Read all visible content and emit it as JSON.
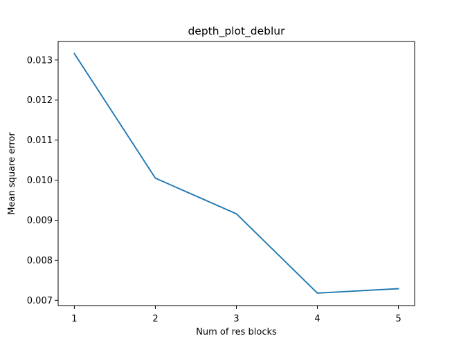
{
  "chart_data": {
    "type": "line",
    "title": "depth_plot_deblur",
    "xlabel": "Num of res blocks",
    "ylabel": "Mean square error",
    "x": [
      1,
      2,
      3,
      4,
      5
    ],
    "series": [
      {
        "values": [
          0.01316,
          0.01005,
          0.00916,
          0.00718,
          0.00729
        ]
      }
    ],
    "xticks": [
      "1",
      "2",
      "3",
      "4",
      "5"
    ],
    "yticks": [
      "0.007",
      "0.008",
      "0.009",
      "0.010",
      "0.011",
      "0.012",
      "0.013"
    ],
    "xlim": [
      0.8,
      5.2
    ],
    "ylim": [
      0.006868,
      0.013462
    ],
    "grid": false,
    "colors": {
      "line": "#1f77b4"
    }
  }
}
